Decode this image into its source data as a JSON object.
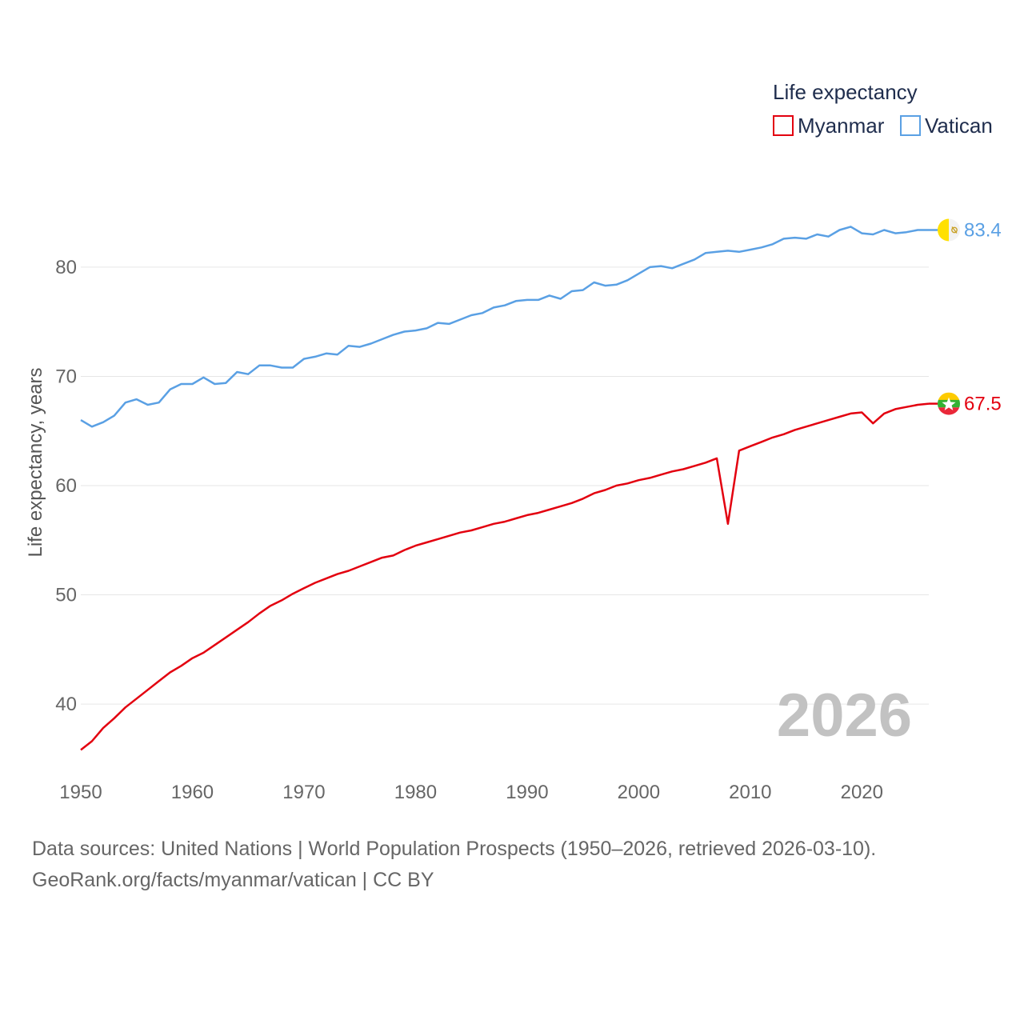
{
  "chart_data": {
    "type": "line",
    "title": "Life expectancy",
    "xlabel": "",
    "ylabel": "Life expectancy, years",
    "xlim": [
      1950,
      2026
    ],
    "ylim": [
      34,
      86
    ],
    "xticks": [
      1950,
      1960,
      1970,
      1980,
      1990,
      2000,
      2010,
      2020
    ],
    "yticks": [
      40,
      50,
      60,
      70,
      80
    ],
    "grid": true,
    "legend_position": "top-right",
    "current_year_label": "2026",
    "x": [
      1950,
      1951,
      1952,
      1953,
      1954,
      1955,
      1956,
      1957,
      1958,
      1959,
      1960,
      1961,
      1962,
      1963,
      1964,
      1965,
      1966,
      1967,
      1968,
      1969,
      1970,
      1971,
      1972,
      1973,
      1974,
      1975,
      1976,
      1977,
      1978,
      1979,
      1980,
      1981,
      1982,
      1983,
      1984,
      1985,
      1986,
      1987,
      1988,
      1989,
      1990,
      1991,
      1992,
      1993,
      1994,
      1995,
      1996,
      1997,
      1998,
      1999,
      2000,
      2001,
      2002,
      2003,
      2004,
      2005,
      2006,
      2007,
      2008,
      2009,
      2010,
      2011,
      2012,
      2013,
      2014,
      2015,
      2016,
      2017,
      2018,
      2019,
      2020,
      2021,
      2022,
      2023,
      2024,
      2025,
      2026
    ],
    "series": [
      {
        "name": "Myanmar",
        "color": "#e3000f",
        "end_label": "67.5",
        "flag": "myanmar-flag",
        "values": [
          35.8,
          36.6,
          37.8,
          38.7,
          39.7,
          40.5,
          41.3,
          42.1,
          42.9,
          43.5,
          44.2,
          44.7,
          45.4,
          46.1,
          46.8,
          47.5,
          48.3,
          49.0,
          49.5,
          50.1,
          50.6,
          51.1,
          51.5,
          51.9,
          52.2,
          52.6,
          53.0,
          53.4,
          53.6,
          54.1,
          54.5,
          54.8,
          55.1,
          55.4,
          55.7,
          55.9,
          56.2,
          56.5,
          56.7,
          57.0,
          57.3,
          57.5,
          57.8,
          58.1,
          58.4,
          58.8,
          59.3,
          59.6,
          60.0,
          60.2,
          60.5,
          60.7,
          61.0,
          61.3,
          61.5,
          61.8,
          62.1,
          62.5,
          56.5,
          63.2,
          63.6,
          64.0,
          64.4,
          64.7,
          65.1,
          65.4,
          65.7,
          66.0,
          66.3,
          66.6,
          66.7,
          65.7,
          66.6,
          67.0,
          67.2,
          67.4,
          67.5
        ]
      },
      {
        "name": "Vatican",
        "color": "#5aa0e4",
        "end_label": "83.4",
        "flag": "vatican-flag",
        "values": [
          66.0,
          65.4,
          65.8,
          66.4,
          67.6,
          67.9,
          67.4,
          67.6,
          68.8,
          69.3,
          69.3,
          69.9,
          69.3,
          69.4,
          70.4,
          70.2,
          71.0,
          71.0,
          70.8,
          70.8,
          71.6,
          71.8,
          72.1,
          72.0,
          72.8,
          72.7,
          73.0,
          73.4,
          73.8,
          74.1,
          74.2,
          74.4,
          74.9,
          74.8,
          75.2,
          75.6,
          75.8,
          76.3,
          76.5,
          76.9,
          77.0,
          77.0,
          77.4,
          77.1,
          77.8,
          77.9,
          78.6,
          78.3,
          78.4,
          78.8,
          79.4,
          80.0,
          80.1,
          79.9,
          80.3,
          80.7,
          81.3,
          81.4,
          81.5,
          81.4,
          81.6,
          81.8,
          82.1,
          82.6,
          82.7,
          82.6,
          83.0,
          82.8,
          83.4,
          83.7,
          83.1,
          83.0,
          83.4,
          83.1,
          83.2,
          83.4,
          83.4
        ]
      }
    ]
  },
  "source": {
    "line1": "Data sources: United Nations | World Population Prospects (1950–2026, retrieved 2026-03-10).",
    "line2": "GeoRank.org/facts/myanmar/vatican | CC BY"
  }
}
